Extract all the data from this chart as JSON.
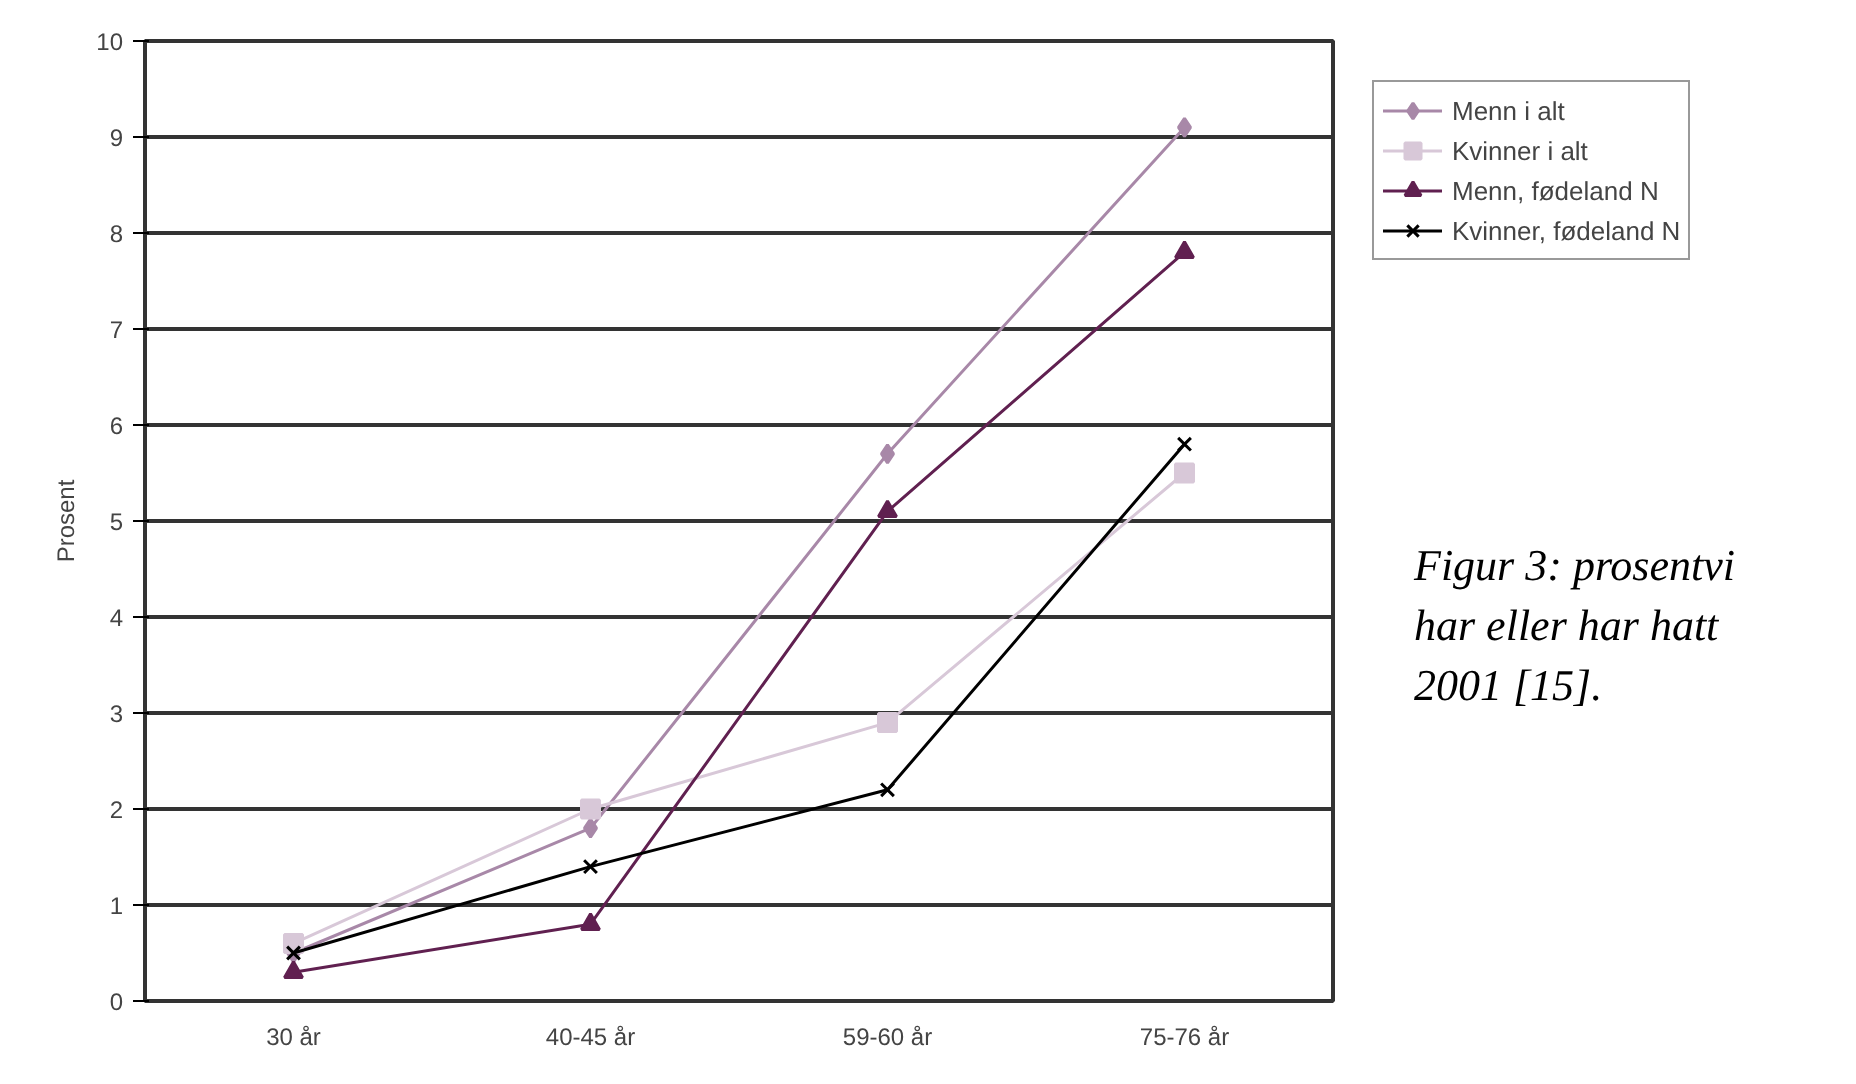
{
  "chart_data": {
    "type": "line",
    "ylabel": "Prosent",
    "categories": [
      "30 år",
      "40-45 år",
      "59-60 år",
      "75-76 år"
    ],
    "series": [
      {
        "name": "Menn i alt",
        "color": "#a888a8",
        "marker": "diamond",
        "values": [
          0.5,
          1.8,
          5.7,
          9.1
        ]
      },
      {
        "name": "Kvinner i alt",
        "color": "#d8c8d8",
        "marker": "square",
        "values": [
          0.6,
          2.0,
          2.9,
          5.5
        ]
      },
      {
        "name": "Menn, fødeland N",
        "color": "#602050",
        "marker": "triangle",
        "values": [
          0.3,
          0.8,
          5.1,
          7.8
        ]
      },
      {
        "name": "Kvinner, fødeland N",
        "color": "#000000",
        "marker": "cross",
        "values": [
          0.5,
          1.4,
          2.2,
          5.8
        ]
      }
    ],
    "ylim": [
      0,
      10
    ],
    "yticks": [
      0,
      1,
      2,
      3,
      4,
      5,
      6,
      7,
      8,
      9,
      10
    ],
    "grid": "y",
    "legend": "right",
    "annotations": [
      "Figur 3: prosentvi",
      "har eller har hatt",
      "2001 [15]."
    ]
  }
}
